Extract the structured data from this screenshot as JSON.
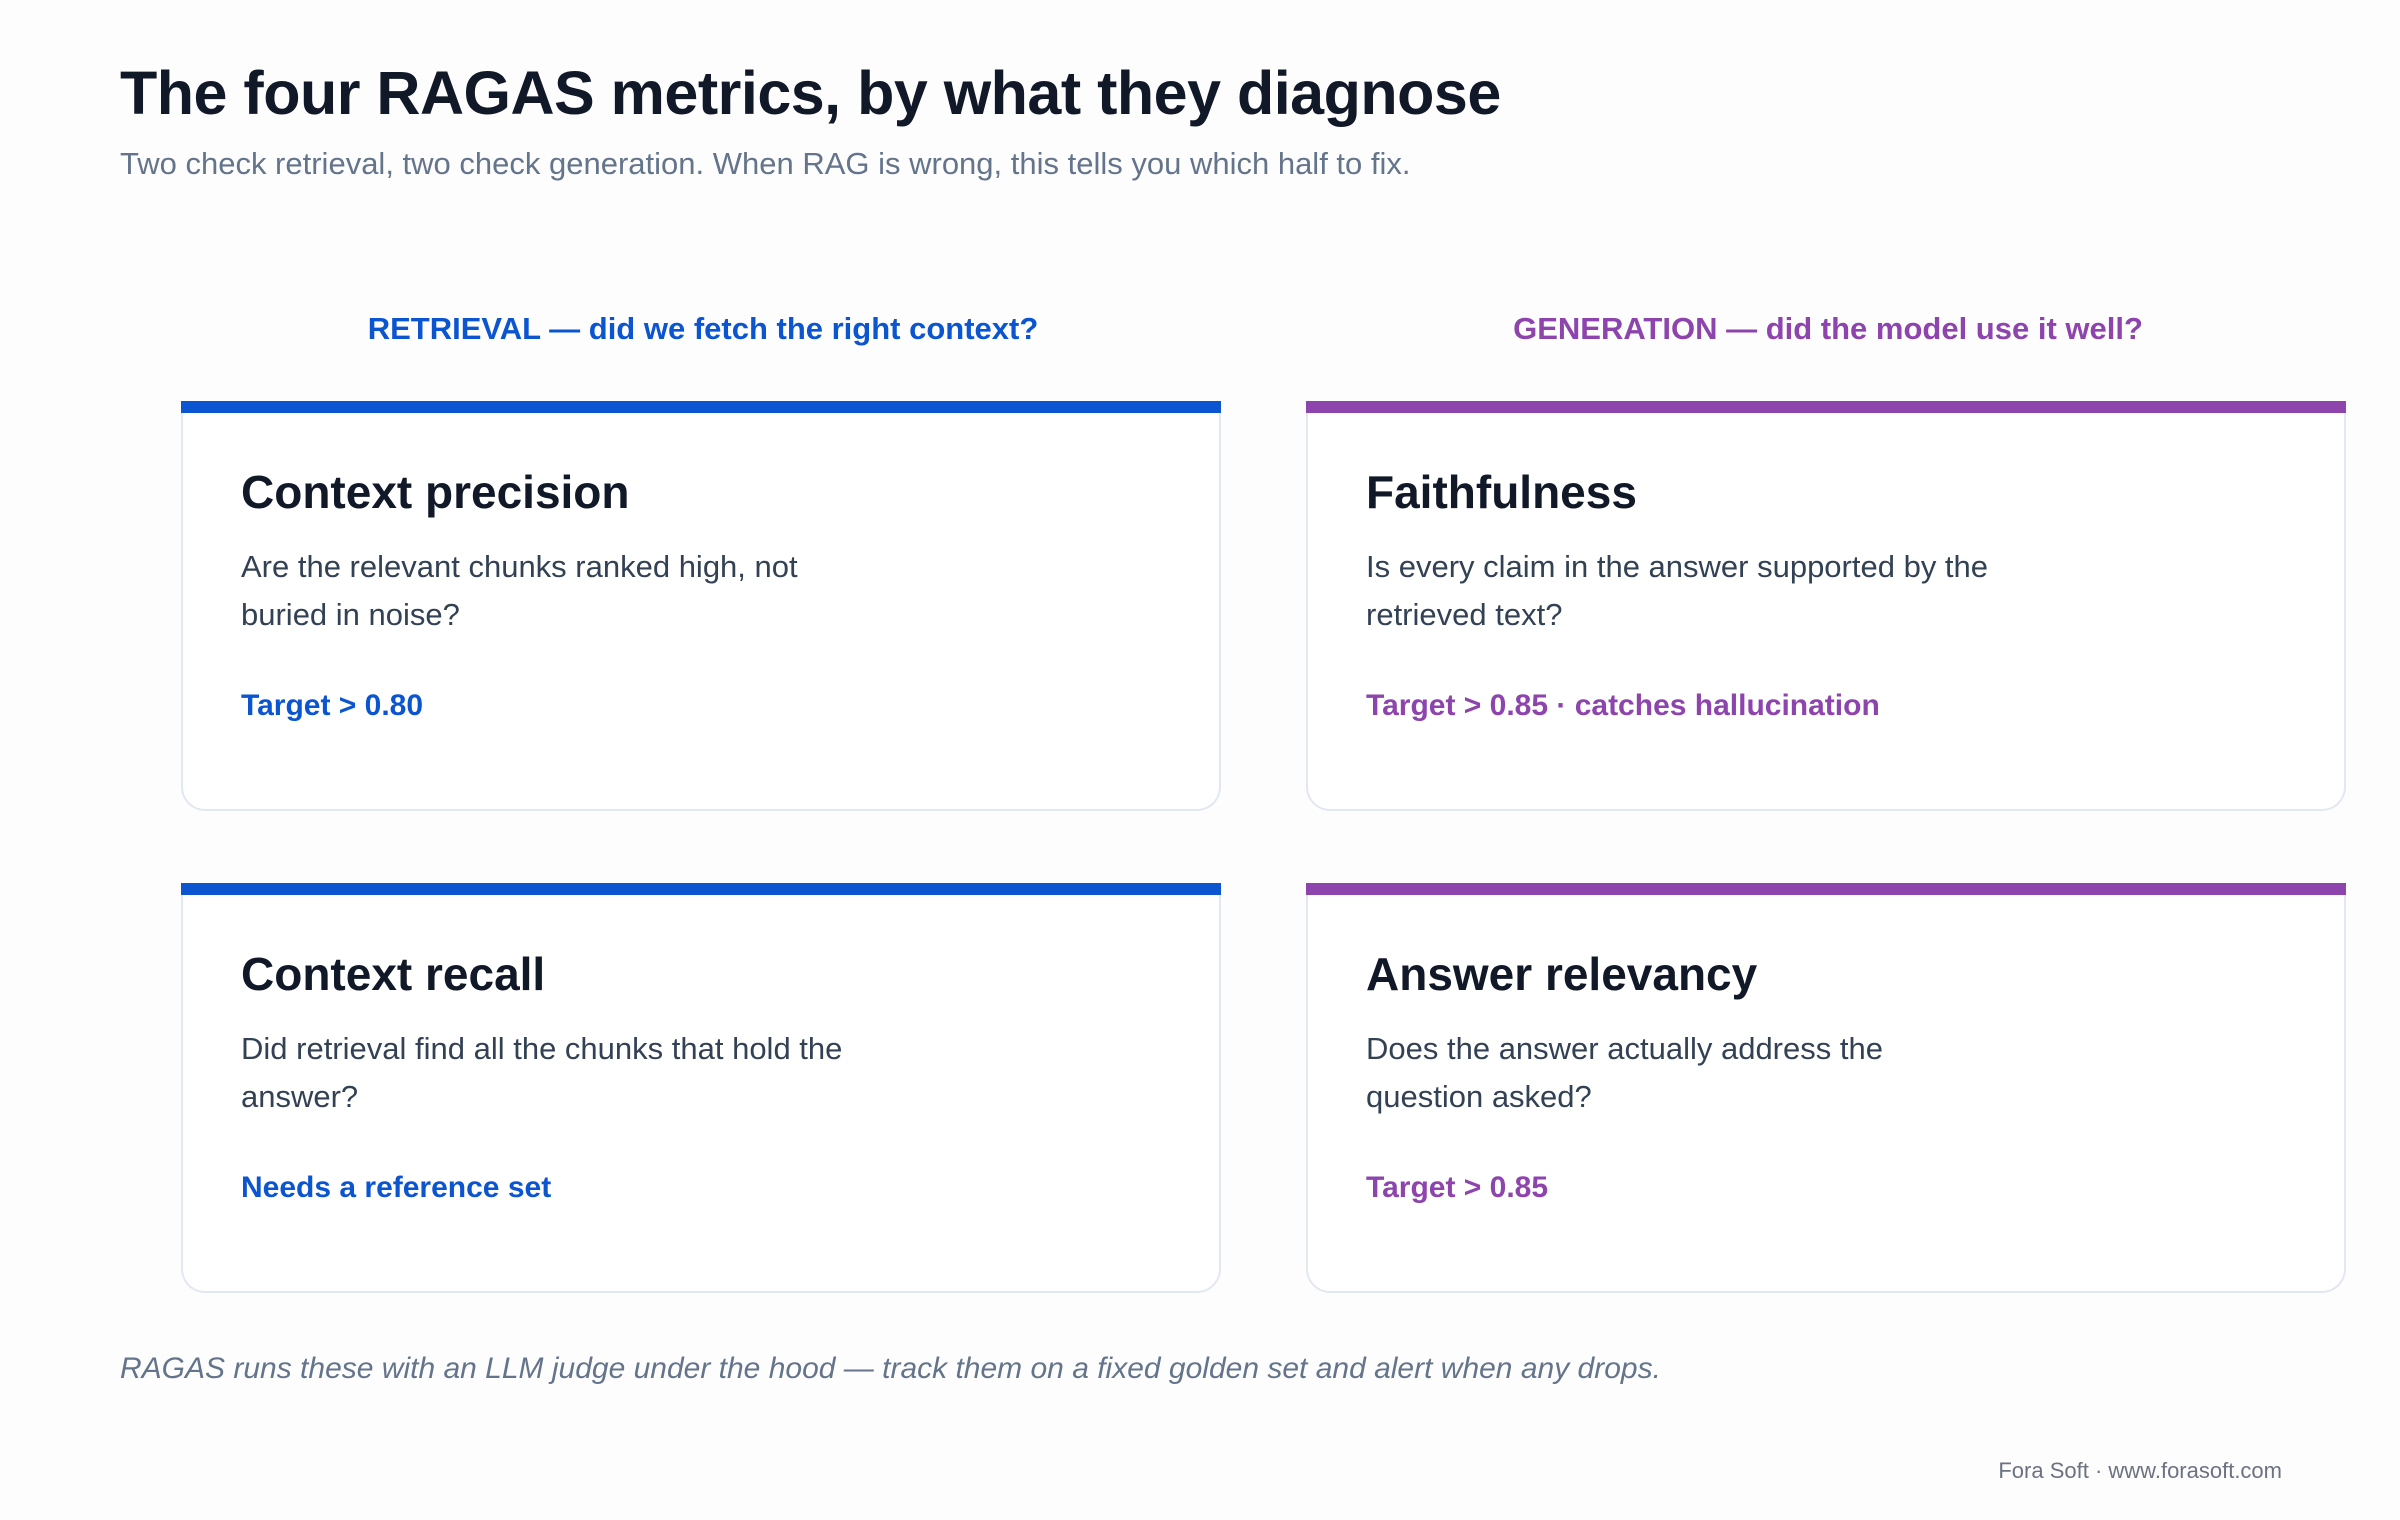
{
  "title": "The four RAGAS metrics, by what they diagnose",
  "subtitle": "Two check retrieval, two check generation. When RAG is wrong, this tells you which half to fix.",
  "columns": {
    "retrieval": "RETRIEVAL — did we fetch the right context?",
    "generation": "GENERATION — did the model use it well?"
  },
  "colors": {
    "retrieval": "#0b55d0",
    "generation": "#8e44ad"
  },
  "cards": {
    "context_precision": {
      "name": "Context precision",
      "desc": "Are the relevant chunks ranked high, not buried in noise?",
      "note": "Target > 0.80"
    },
    "faithfulness": {
      "name": "Faithfulness",
      "desc": "Is every claim in the answer supported by the retrieved text?",
      "note": "Target > 0.85 · catches hallucination"
    },
    "context_recall": {
      "name": "Context recall",
      "desc": "Did retrieval find all the chunks that hold the answer?",
      "note": "Needs a reference set"
    },
    "answer_relevancy": {
      "name": "Answer relevancy",
      "desc": "Does the answer actually address the question asked?",
      "note": "Target > 0.85"
    }
  },
  "footnote": "RAGAS runs these with an LLM judge under the hood — track them on a fixed golden set and alert when any drops.",
  "credit": "Fora Soft · www.forasoft.com"
}
